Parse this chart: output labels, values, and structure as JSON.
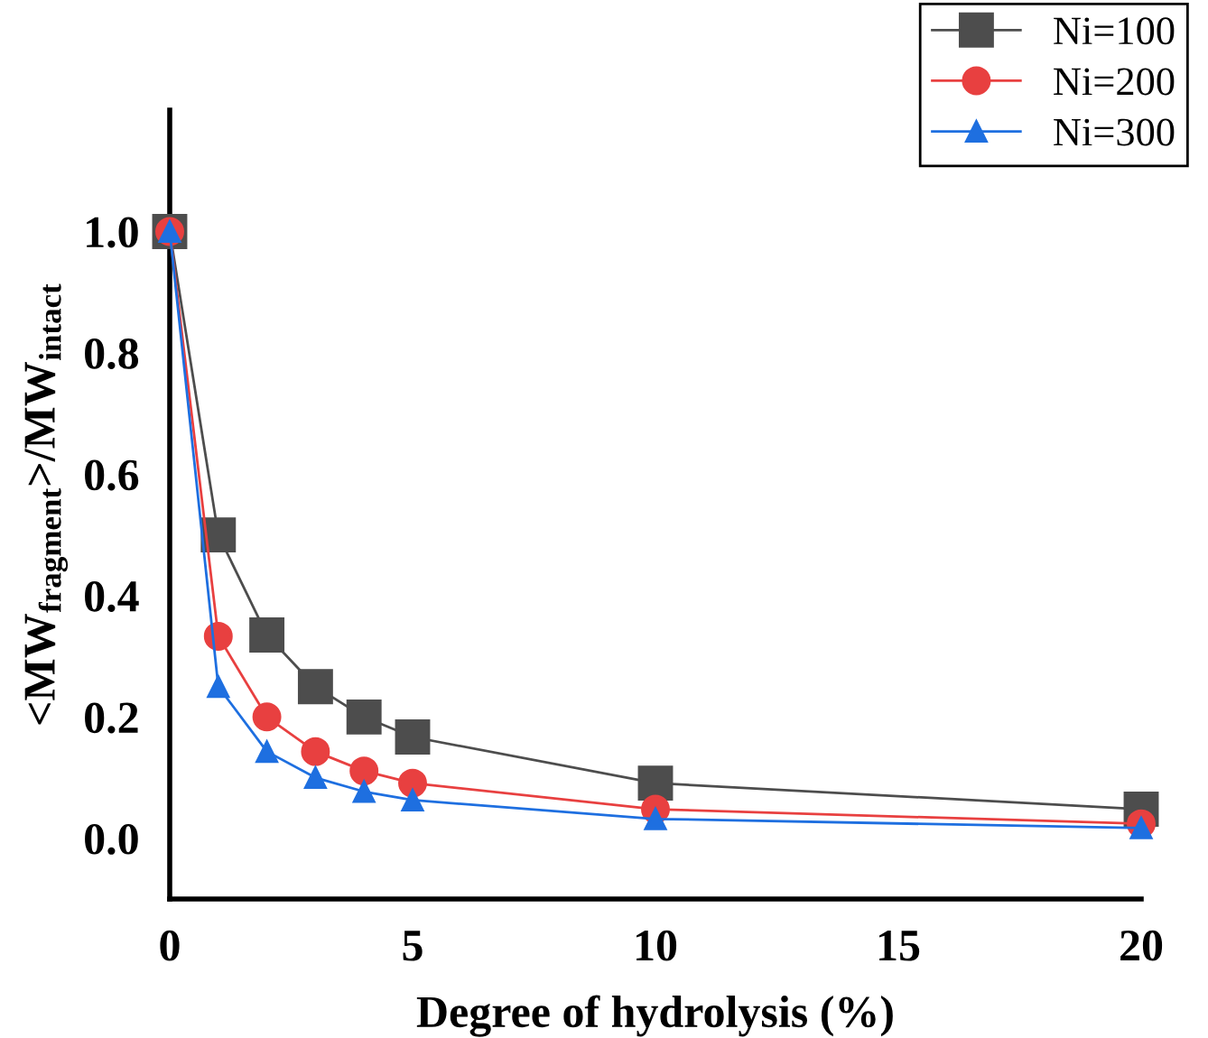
{
  "chart_data": {
    "type": "line",
    "xlabel": "Degree of hydrolysis (%)",
    "ylabel": "<MW$_{fragment}$>/MW$_{intact}$",
    "x": [
      0,
      1,
      2,
      3,
      4,
      5,
      10,
      20
    ],
    "series": [
      {
        "name": "Ni=100",
        "color": "#4d4d4d",
        "marker": "square",
        "values": [
          1.0,
          0.5,
          0.335,
          0.25,
          0.2,
          0.167,
          0.091,
          0.048
        ]
      },
      {
        "name": "Ni=200",
        "color": "#e84040",
        "marker": "circle",
        "values": [
          1.0,
          0.333,
          0.2,
          0.143,
          0.111,
          0.091,
          0.048,
          0.024
        ]
      },
      {
        "name": "Ni=300",
        "color": "#1e6fe0",
        "marker": "triangle",
        "values": [
          1.0,
          0.25,
          0.143,
          0.1,
          0.077,
          0.063,
          0.032,
          0.017
        ]
      }
    ],
    "xlim": [
      0,
      20
    ],
    "xticks": [
      0,
      5,
      10,
      15,
      20
    ],
    "ylim": [
      -0.1,
      1.2
    ],
    "yticks": [
      {
        "value": 0,
        "label": "0.0"
      },
      {
        "value": 0.2,
        "label": "0.2"
      },
      {
        "value": 0.4,
        "label": "0.4"
      },
      {
        "value": 0.6,
        "label": "0.6"
      },
      {
        "value": 0.8,
        "label": "0.8"
      },
      {
        "value": 1.0,
        "label": "1.0"
      }
    ],
    "grid": false,
    "legend": "top right",
    "line_style": "solid"
  }
}
